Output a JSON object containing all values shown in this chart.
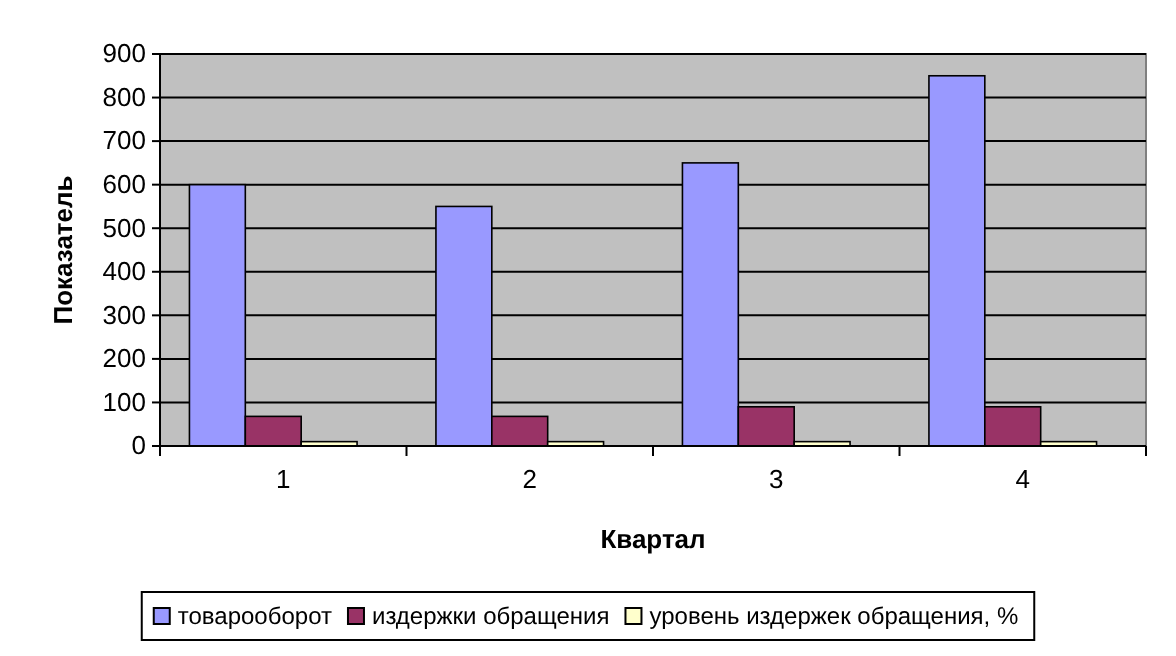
{
  "chart_data": {
    "type": "bar",
    "xlabel": "Квартал",
    "ylabel": "Показатель",
    "categories": [
      "1",
      "2",
      "3",
      "4"
    ],
    "series": [
      {
        "name": "товарооборот",
        "color": "#9999ff",
        "values": [
          600,
          550,
          650,
          850
        ]
      },
      {
        "name": "издержки обращения",
        "color": "#993366",
        "values": [
          68,
          68,
          90,
          90
        ]
      },
      {
        "name": "уровень издержек обращения, %",
        "color": "#ffffcc",
        "values": [
          10,
          10,
          10,
          10
        ]
      }
    ],
    "ylim": [
      0,
      900
    ],
    "yticks": [
      0,
      100,
      200,
      300,
      400,
      500,
      600,
      700,
      800,
      900
    ],
    "grid": "y",
    "legend": "bottom"
  }
}
